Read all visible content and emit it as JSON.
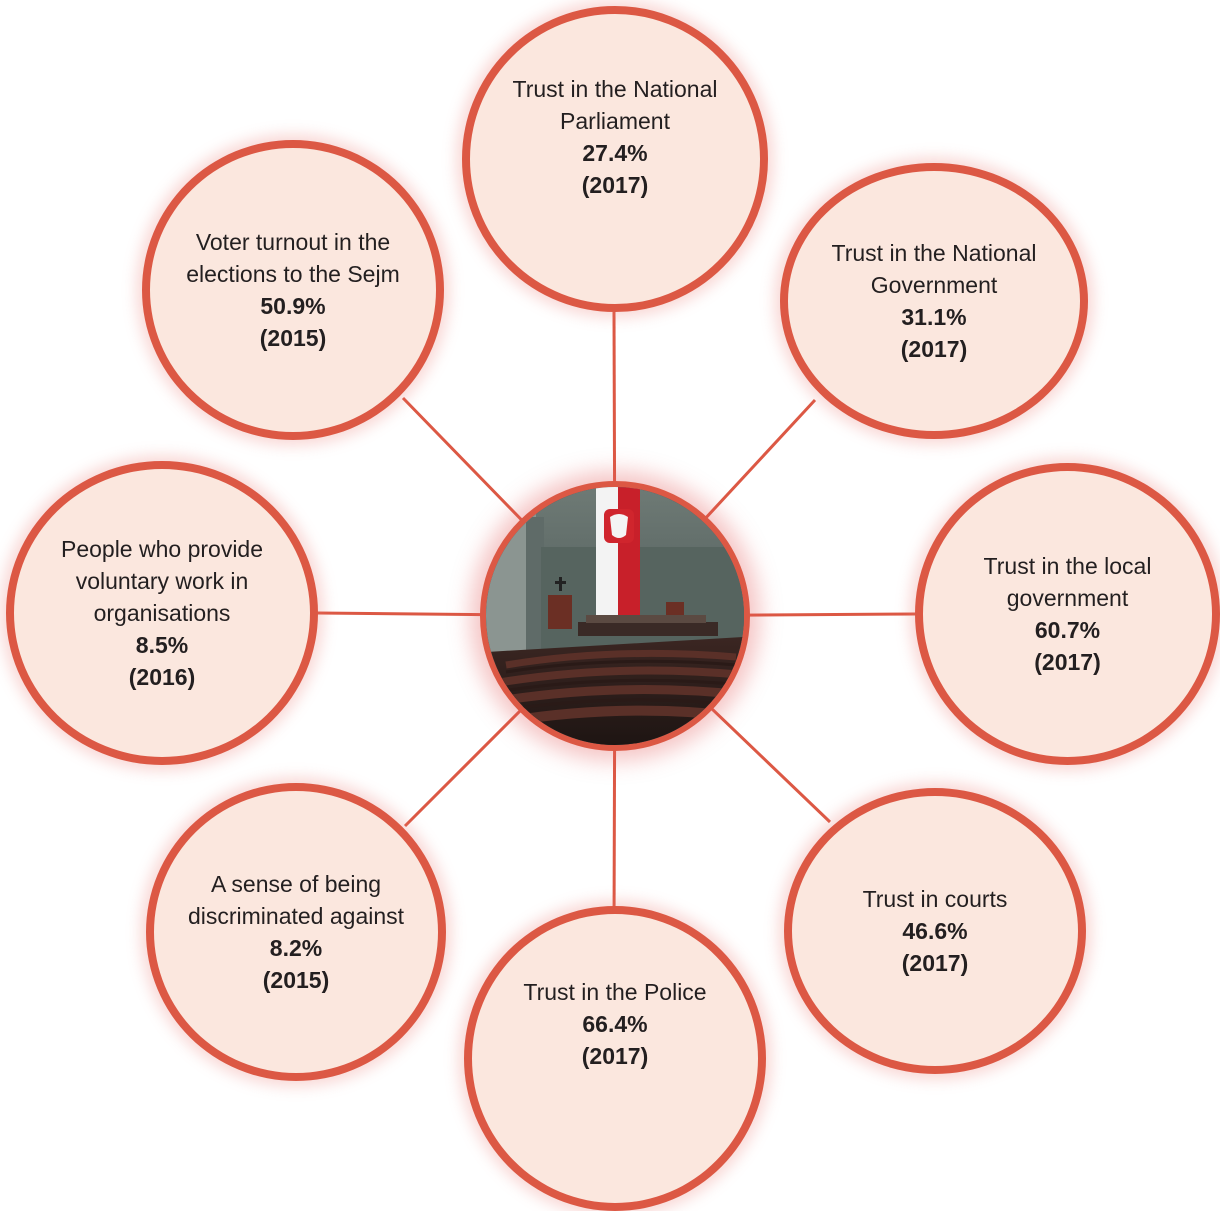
{
  "center": {
    "image": "sejm-chamber-photo"
  },
  "items": [
    {
      "label": "Trust in the National\nParliament",
      "value": "27.4%",
      "year": "(2017)"
    },
    {
      "label": "Trust in the National\nGovernment",
      "value": "31.1%",
      "year": "(2017)"
    },
    {
      "label": "Trust in the local\ngovernment",
      "value": "60.7%",
      "year": "(2017)"
    },
    {
      "label": "Trust in courts",
      "value": "46.6%",
      "year": "(2017)"
    },
    {
      "label": "Trust in the Police",
      "value": "66.4%",
      "year": "(2017)"
    },
    {
      "label": "A sense of being\ndiscriminated against",
      "value": "8.2%",
      "year": "(2015)"
    },
    {
      "label": "People who provide\nvoluntary work in\norganisations",
      "value": "8.5%",
      "year": "(2016)"
    },
    {
      "label": "Voter turnout in the\nelections to the Sejm",
      "value": "50.9%",
      "year": "(2015)"
    }
  ],
  "colors": {
    "ring": "#dc5844",
    "fill": "#fbe7de",
    "connector": "#dc5844"
  }
}
